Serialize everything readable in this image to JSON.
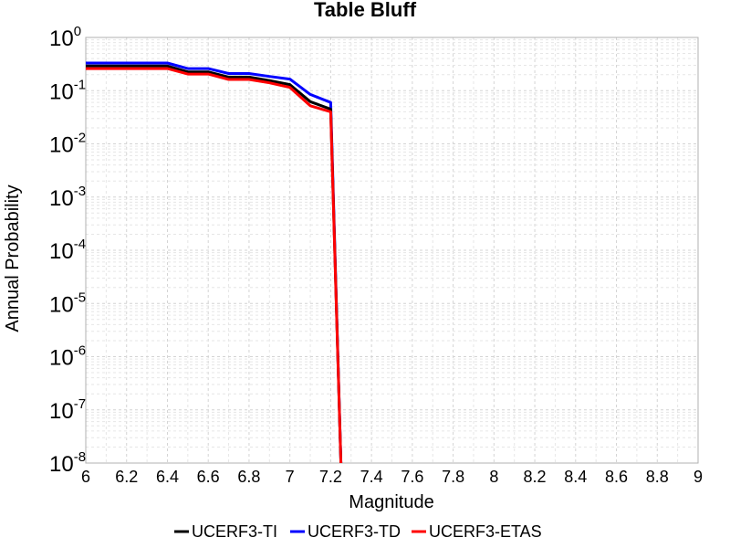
{
  "chart_data": {
    "type": "line",
    "title": "Table Bluff",
    "xlabel": "Magnitude",
    "ylabel": "Annual Probability",
    "xlim": [
      6,
      9
    ],
    "ylim": [
      1e-08,
      1
    ],
    "yscale": "log",
    "grid": true,
    "legend_position": "bottom",
    "x_ticks": [
      "6",
      "6.2",
      "6.4",
      "6.6",
      "6.8",
      "7",
      "7.2",
      "7.4",
      "7.6",
      "7.8",
      "8",
      "8.2",
      "8.4",
      "8.6",
      "8.8",
      "9"
    ],
    "y_ticks": [
      {
        "base": "10",
        "exp": "0"
      },
      {
        "base": "10",
        "exp": "-1"
      },
      {
        "base": "10",
        "exp": "-2"
      },
      {
        "base": "10",
        "exp": "-3"
      },
      {
        "base": "10",
        "exp": "-4"
      },
      {
        "base": "10",
        "exp": "-5"
      },
      {
        "base": "10",
        "exp": "-6"
      },
      {
        "base": "10",
        "exp": "-7"
      },
      {
        "base": "10",
        "exp": "-8"
      }
    ],
    "x": [
      6.0,
      6.1,
      6.2,
      6.3,
      6.4,
      6.5,
      6.6,
      6.7,
      6.8,
      6.9,
      7.0,
      7.1,
      7.2,
      7.25
    ],
    "series": [
      {
        "name": "UCERF3-TD",
        "color": "#0000ff",
        "values": [
          0.33,
          0.33,
          0.33,
          0.33,
          0.33,
          0.26,
          0.26,
          0.21,
          0.21,
          0.185,
          0.165,
          0.085,
          0.06,
          1e-08
        ]
      },
      {
        "name": "UCERF3-TI",
        "color": "#000000",
        "values": [
          0.29,
          0.29,
          0.29,
          0.29,
          0.29,
          0.225,
          0.225,
          0.18,
          0.18,
          0.155,
          0.13,
          0.062,
          0.045,
          1e-08
        ]
      },
      {
        "name": "UCERF3-ETAS",
        "color": "#ff0000",
        "values": [
          0.26,
          0.26,
          0.26,
          0.26,
          0.26,
          0.205,
          0.205,
          0.162,
          0.162,
          0.14,
          0.115,
          0.052,
          0.04,
          1e-08
        ]
      }
    ],
    "legend": [
      "UCERF3-TI",
      "UCERF3-TD",
      "UCERF3-ETAS"
    ]
  }
}
